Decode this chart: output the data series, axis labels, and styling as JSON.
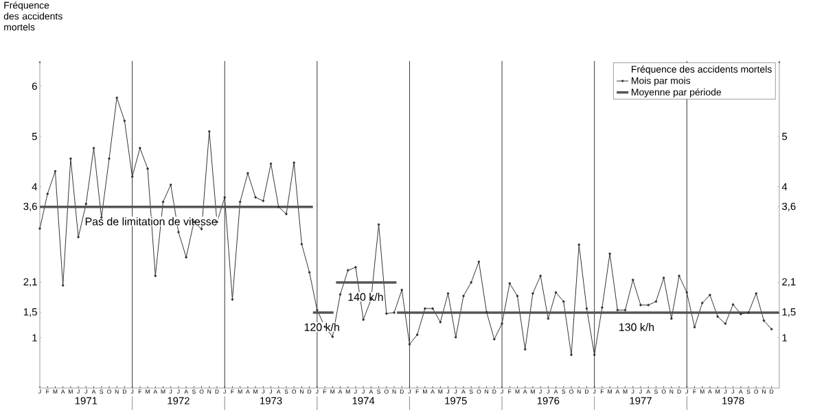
{
  "chart_data": {
    "type": "line",
    "ylabel": "Fréquence des accidents mortels",
    "legend_title": "Fréquence des accidents mortels",
    "legend": "top right",
    "x": [
      "1971-01",
      "1971-02",
      "1971-03",
      "1971-04",
      "1971-05",
      "1971-06",
      "1971-07",
      "1971-08",
      "1971-09",
      "1971-10",
      "1971-11",
      "1971-12",
      "1972-01",
      "1972-02",
      "1972-03",
      "1972-04",
      "1972-05",
      "1972-06",
      "1972-07",
      "1972-08",
      "1972-09",
      "1972-10",
      "1972-11",
      "1972-12",
      "1973-01",
      "1973-02",
      "1973-03",
      "1973-04",
      "1973-05",
      "1973-06",
      "1973-07",
      "1973-08",
      "1973-09",
      "1973-10",
      "1973-11",
      "1973-12",
      "1974-01",
      "1974-02",
      "1974-03",
      "1974-04",
      "1974-05",
      "1974-06",
      "1974-07",
      "1974-08",
      "1974-09",
      "1974-10",
      "1974-11",
      "1974-12",
      "1975-01",
      "1975-02",
      "1975-03",
      "1975-04",
      "1975-05",
      "1975-06",
      "1975-07",
      "1975-08",
      "1975-09",
      "1975-10",
      "1975-11",
      "1975-12",
      "1976-01",
      "1976-02",
      "1976-03",
      "1976-04",
      "1976-05",
      "1976-06",
      "1976-07",
      "1976-08",
      "1976-09",
      "1976-10",
      "1976-11",
      "1976-12",
      "1977-01",
      "1977-02",
      "1977-03",
      "1977-04",
      "1977-05",
      "1977-06",
      "1977-07",
      "1977-08",
      "1977-09",
      "1977-10",
      "1977-11",
      "1977-12",
      "1978-01",
      "1978-02",
      "1978-03",
      "1978-04",
      "1978-05",
      "1978-06",
      "1978-07",
      "1978-08",
      "1978-09",
      "1978-10",
      "1978-11",
      "1978-12"
    ],
    "series": [
      {
        "name": "Mois par mois",
        "color": "#333333",
        "marker": "circle",
        "values": [
          3.17,
          3.86,
          4.31,
          2.04,
          4.56,
          3.0,
          3.66,
          4.77,
          3.39,
          4.56,
          5.77,
          5.31,
          4.2,
          4.77,
          4.36,
          2.23,
          3.7,
          4.04,
          3.1,
          2.6,
          3.3,
          3.16,
          5.1,
          3.3,
          3.79,
          1.76,
          3.7,
          4.27,
          3.79,
          3.72,
          4.46,
          3.6,
          3.46,
          4.48,
          2.86,
          2.3,
          1.55,
          1.22,
          1.02,
          1.86,
          2.34,
          2.4,
          1.36,
          1.76,
          3.25,
          1.48,
          1.5,
          1.95,
          0.87,
          1.06,
          1.58,
          1.58,
          1.31,
          1.88,
          1.01,
          1.83,
          2.1,
          2.51,
          1.51,
          0.97,
          1.28,
          2.08,
          1.83,
          0.77,
          1.88,
          2.23,
          1.38,
          1.9,
          1.72,
          0.66,
          2.85,
          1.58,
          0.66,
          1.6,
          2.67,
          1.55,
          1.55,
          2.15,
          1.65,
          1.65,
          1.72,
          2.19,
          1.38,
          2.23,
          1.9,
          1.21,
          1.69,
          1.85,
          1.42,
          1.28,
          1.66,
          1.47,
          1.5,
          1.88,
          1.34,
          1.17
        ]
      },
      {
        "name": "Moyenne par période",
        "color": "#555555",
        "marker": "none",
        "x": [
          "1971-01-01",
          "1973-12-15"
        ],
        "values": [
          3.6,
          3.6
        ]
      },
      {
        "color": "#555555",
        "marker": "none",
        "x": [
          "1973-12-15",
          "1974-03-05"
        ],
        "values": [
          1.5,
          1.5
        ]
      },
      {
        "color": "#555555",
        "marker": "none",
        "x": [
          "1974-03-15",
          "1974-11-10"
        ],
        "values": [
          2.1,
          2.1
        ]
      },
      {
        "color": "#555555",
        "marker": "none",
        "x": [
          "1974-11-12",
          "1978-12-31"
        ],
        "values": [
          1.5,
          1.5
        ]
      }
    ],
    "xlim": [
      "1971-01-01",
      "1979-01-01"
    ],
    "xticks": [
      {
        "value": "1971-07-01",
        "label": "1971"
      },
      {
        "value": "1972-07-01",
        "label": "1972"
      },
      {
        "value": "1973-07-01",
        "label": "1973"
      },
      {
        "value": "1974-07-01",
        "label": "1974"
      },
      {
        "value": "1975-07-01",
        "label": "1975"
      },
      {
        "value": "1976-07-01",
        "label": "1976"
      },
      {
        "value": "1977-07-01",
        "label": "1977"
      },
      {
        "value": "1978-07-01",
        "label": "1978"
      }
    ],
    "ylim": [
      0,
      6.5
    ],
    "yticks": [
      1,
      {
        "value": 1.5,
        "label": "1,5"
      },
      {
        "value": 2.1,
        "label": "2,1"
      },
      {
        "value": 3.6,
        "label": "3,6"
      },
      4,
      5,
      6
    ],
    "y2lim": [
      0,
      6.5
    ],
    "y2ticks": [
      1,
      {
        "value": 1.5,
        "label": "1,5"
      },
      {
        "value": 2.1,
        "label": "2,1"
      },
      {
        "value": 3.6,
        "label": "3,6"
      },
      4,
      5
    ],
    "ref_lines": [
      {
        "axis": "x",
        "value": "1972-01-01",
        "label": null,
        "color": "#333333"
      },
      {
        "axis": "x",
        "value": "1973-01-01",
        "label": null,
        "color": "#333333"
      },
      {
        "axis": "x",
        "value": "1974-01-01",
        "label": null,
        "color": "#333333"
      },
      {
        "axis": "x",
        "value": "1975-01-01",
        "label": null,
        "color": "#333333"
      },
      {
        "axis": "x",
        "value": "1976-01-01",
        "label": null,
        "color": "#333333"
      },
      {
        "axis": "x",
        "value": "1977-01-01",
        "label": null,
        "color": "#333333"
      },
      {
        "axis": "x",
        "value": "1978-01-01",
        "label": null,
        "color": "#333333"
      }
    ],
    "annotations": [
      {
        "text": "Pas de limitation de vitesse",
        "x": "1972-03-15",
        "y": 3.6
      },
      {
        "text": "120 k/h",
        "x": "1974-01-20",
        "y": 1.5
      },
      {
        "text": "140 k/h",
        "x": "1974-07-10",
        "y": 2.1
      },
      {
        "text": "130 k/h",
        "x": "1977-06-15",
        "y": 1.5
      },
      "J",
      "F",
      "M",
      "A",
      "M",
      "J",
      "J",
      "A",
      "S",
      "O",
      "N",
      "D",
      "J",
      "F",
      "M",
      "A",
      "M",
      "J",
      "J",
      "A",
      "S",
      "O",
      "N",
      "D",
      "J",
      "F",
      "M",
      "A",
      "M",
      "J",
      "J",
      "A",
      "S",
      "O",
      "N",
      "D",
      "J",
      "F",
      "M",
      "A",
      "M",
      "J",
      "J",
      "A",
      "S",
      "O",
      "N",
      "D",
      "J",
      "F",
      "M",
      "A",
      "M",
      "J",
      "J",
      "A",
      "S",
      "O",
      "N",
      "D",
      "J",
      "F",
      "M",
      "A",
      "M",
      "J",
      "J",
      "A",
      "S",
      "O",
      "N",
      "D",
      "J",
      "F",
      "M",
      "A",
      "M",
      "J",
      "J",
      "A",
      "S",
      "O",
      "N",
      "D",
      "J",
      "F",
      "M",
      "A",
      "M",
      "J",
      "J",
      "A",
      "S",
      "O",
      "N",
      "D"
    ]
  }
}
